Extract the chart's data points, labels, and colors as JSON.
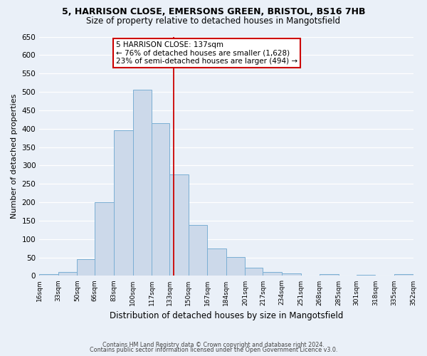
{
  "title1": "5, HARRISON CLOSE, EMERSONS GREEN, BRISTOL, BS16 7HB",
  "title2": "Size of property relative to detached houses in Mangotsfield",
  "xlabel": "Distribution of detached houses by size in Mangotsfield",
  "ylabel": "Number of detached properties",
  "bar_color": "#ccd9ea",
  "bar_edge_color": "#7bafd4",
  "background_color": "#eaf0f8",
  "grid_color": "#ffffff",
  "bin_edges": [
    16,
    33,
    50,
    66,
    83,
    100,
    117,
    133,
    150,
    167,
    184,
    201,
    217,
    234,
    251,
    268,
    285,
    301,
    318,
    335,
    352
  ],
  "bin_labels": [
    "16sqm",
    "33sqm",
    "50sqm",
    "66sqm",
    "83sqm",
    "100sqm",
    "117sqm",
    "133sqm",
    "150sqm",
    "167sqm",
    "184sqm",
    "201sqm",
    "217sqm",
    "234sqm",
    "251sqm",
    "268sqm",
    "285sqm",
    "301sqm",
    "318sqm",
    "335sqm",
    "352sqm"
  ],
  "counts": [
    5,
    10,
    45,
    200,
    395,
    505,
    415,
    275,
    138,
    75,
    52,
    22,
    10,
    7,
    0,
    5,
    0,
    3,
    0,
    5
  ],
  "property_value": 137,
  "vline_color": "#cc0000",
  "annotation_box_edge_color": "#cc0000",
  "annotation_title": "5 HARRISON CLOSE: 137sqm",
  "annotation_line1": "← 76% of detached houses are smaller (1,628)",
  "annotation_line2": "23% of semi-detached houses are larger (494) →",
  "ylim": [
    0,
    650
  ],
  "yticks": [
    0,
    50,
    100,
    150,
    200,
    250,
    300,
    350,
    400,
    450,
    500,
    550,
    600,
    650
  ],
  "footer1": "Contains HM Land Registry data © Crown copyright and database right 2024.",
  "footer2": "Contains public sector information licensed under the Open Government Licence v3.0."
}
